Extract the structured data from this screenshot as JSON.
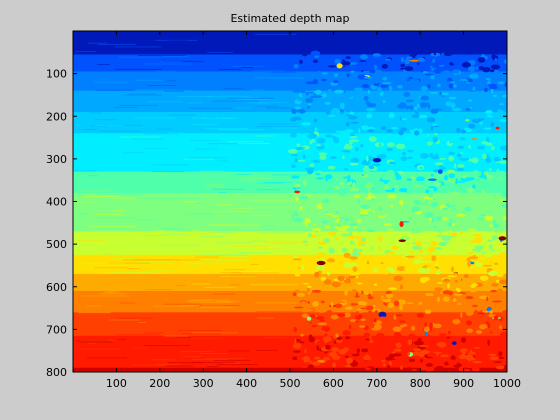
{
  "chart_data": {
    "type": "heatmap",
    "title": "Estimated depth map",
    "xlabel": "",
    "ylabel": "",
    "xlim": [
      0,
      1000
    ],
    "ylim": [
      0,
      800
    ],
    "y_reversed": true,
    "grid": false,
    "colormap": "jet",
    "x_ticks": [
      100,
      200,
      300,
      400,
      500,
      600,
      700,
      800,
      900,
      1000
    ],
    "y_ticks": [
      100,
      200,
      300,
      400,
      500,
      600,
      700,
      800
    ],
    "boundary_x": 505,
    "bands": [
      {
        "y0": 0,
        "y1": 55,
        "color": "#0019b8"
      },
      {
        "y0": 55,
        "y1": 95,
        "color": "#0052ff"
      },
      {
        "y0": 95,
        "y1": 140,
        "color": "#0080ff"
      },
      {
        "y0": 140,
        "y1": 190,
        "color": "#00a8ff"
      },
      {
        "y0": 190,
        "y1": 240,
        "color": "#00ccff"
      },
      {
        "y0": 240,
        "y1": 330,
        "color": "#00eeff"
      },
      {
        "y0": 330,
        "y1": 380,
        "color": "#50ffaa"
      },
      {
        "y0": 380,
        "y1": 470,
        "color": "#7fff7f"
      },
      {
        "y0": 470,
        "y1": 525,
        "color": "#c8ff30"
      },
      {
        "y0": 525,
        "y1": 570,
        "color": "#ffe000"
      },
      {
        "y0": 570,
        "y1": 610,
        "color": "#ffaa00"
      },
      {
        "y0": 610,
        "y1": 660,
        "color": "#ff8000"
      },
      {
        "y0": 660,
        "y1": 715,
        "color": "#ff4000"
      },
      {
        "y0": 715,
        "y1": 790,
        "color": "#ff1a00"
      },
      {
        "y0": 790,
        "y1": 800,
        "color": "#d00000"
      }
    ],
    "noise_colors": [
      "#0019b8",
      "#0052ff",
      "#0080ff",
      "#00ccff",
      "#7fff7f",
      "#ffe000",
      "#ff8000",
      "#ff1a00",
      "#800000"
    ]
  }
}
